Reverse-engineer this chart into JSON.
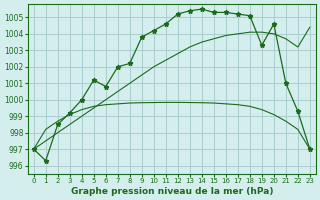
{
  "title": "Graphe pression niveau de la mer (hPa)",
  "bg_color": "#d4eeee",
  "grid_color": "#aacccc",
  "line_color": "#1a6b1a",
  "x_labels": [
    "0",
    "1",
    "2",
    "3",
    "4",
    "5",
    "6",
    "7",
    "8",
    "9",
    "10",
    "11",
    "12",
    "13",
    "14",
    "15",
    "16",
    "17",
    "18",
    "19",
    "20",
    "21",
    "22",
    "23"
  ],
  "ylim": [
    995.5,
    1005.8
  ],
  "yticks": [
    996,
    997,
    998,
    999,
    1000,
    1001,
    1002,
    1003,
    1004,
    1005
  ],
  "pressure_line": [
    997.0,
    996.3,
    998.5,
    999.2,
    1000.0,
    1001.2,
    1000.8,
    1002.0,
    1002.2,
    1003.8,
    1004.2,
    1004.6,
    1005.2,
    1005.4,
    1005.5,
    1005.3,
    1005.3,
    1005.2,
    1005.1,
    1003.3,
    1004.6,
    1001.0,
    999.3,
    997.0
  ],
  "smooth_line_upper": [
    997.0,
    997.5,
    998.0,
    998.5,
    999.0,
    999.5,
    1000.0,
    1000.5,
    1001.0,
    1001.5,
    1002.0,
    1002.4,
    1002.8,
    1003.2,
    1003.5,
    1003.7,
    1003.9,
    1004.0,
    1004.1,
    1004.1,
    1004.0,
    1003.7,
    1003.2,
    1004.4
  ],
  "smooth_line_lower": [
    997.0,
    998.2,
    998.7,
    999.1,
    999.4,
    999.6,
    999.7,
    999.75,
    999.8,
    999.82,
    999.83,
    999.84,
    999.84,
    999.83,
    999.82,
    999.8,
    999.75,
    999.7,
    999.6,
    999.4,
    999.1,
    998.7,
    998.2,
    997.0
  ]
}
